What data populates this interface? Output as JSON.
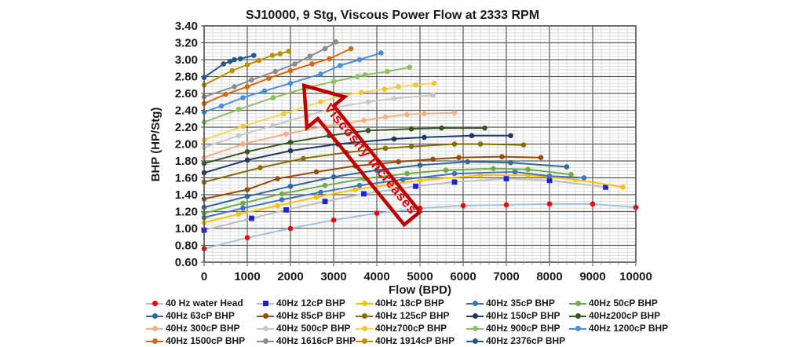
{
  "chart_data": {
    "type": "line",
    "title": "SJ10000, 9 Stg, Viscous Power Flow at 2333 RPM",
    "xlabel": "Flow (BPD)",
    "ylabel": "BHP (HP/Stg)",
    "xlim": [
      0,
      10000
    ],
    "ylim": [
      0.6,
      3.4
    ],
    "x_ticks": [
      0,
      1000,
      2000,
      3000,
      4000,
      5000,
      6000,
      7000,
      8000,
      9000,
      10000
    ],
    "y_ticks": [
      "3.40",
      "3.20",
      "3.00",
      "2.80",
      "2.60",
      "2.40",
      "2.20",
      "2.00",
      "1.80",
      "1.60",
      "1.40",
      "1.20",
      "1.00",
      "0.80",
      "0.60"
    ],
    "x_minor_step": 200,
    "y_minor_step": 0.04,
    "grid": true,
    "legend_position": "bottom",
    "annotation": {
      "text": "Viscosity Increases",
      "arrow_color": "#C00000",
      "text_color": "#E60000",
      "direction": "up-left"
    },
    "series": [
      {
        "name": "40 Hz water Head",
        "line_color": "#9DC3E6",
        "marker_color": "#FF0000",
        "marker": "circle",
        "points": [
          [
            0,
            0.76
          ],
          [
            1000,
            0.89
          ],
          [
            2000,
            1.0
          ],
          [
            3000,
            1.1
          ],
          [
            4000,
            1.18
          ],
          [
            5000,
            1.24
          ],
          [
            6000,
            1.27
          ],
          [
            7000,
            1.28
          ],
          [
            8000,
            1.29
          ],
          [
            9000,
            1.29
          ],
          [
            10000,
            1.25
          ]
        ]
      },
      {
        "name": "40Hz 12cP BHP",
        "line_color": "#BFBFBF",
        "marker_color": "#1F1FE0",
        "marker": "square",
        "points": [
          [
            0,
            0.98
          ],
          [
            1100,
            1.12
          ],
          [
            1900,
            1.22
          ],
          [
            2800,
            1.32
          ],
          [
            3700,
            1.41
          ],
          [
            4900,
            1.5
          ],
          [
            5800,
            1.55
          ],
          [
            7000,
            1.59
          ],
          [
            8000,
            1.57
          ],
          [
            9300,
            1.49
          ]
        ]
      },
      {
        "name": "40Hz 18cP BHP",
        "line_color": "#FFC000",
        "marker_color": "#FFC000",
        "marker": "circle",
        "points": [
          [
            0,
            1.07
          ],
          [
            800,
            1.17
          ],
          [
            1700,
            1.27
          ],
          [
            2600,
            1.37
          ],
          [
            3500,
            1.46
          ],
          [
            4300,
            1.52
          ],
          [
            5000,
            1.57
          ],
          [
            6400,
            1.63
          ],
          [
            7500,
            1.63
          ],
          [
            8600,
            1.58
          ],
          [
            9700,
            1.49
          ]
        ]
      },
      {
        "name": "40Hz 35cP BHP",
        "line_color": "#3C74BE",
        "marker_color": "#3C74BE",
        "marker": "circle",
        "points": [
          [
            0,
            1.13
          ],
          [
            900,
            1.24
          ],
          [
            1800,
            1.34
          ],
          [
            2700,
            1.43
          ],
          [
            3600,
            1.51
          ],
          [
            4600,
            1.58
          ],
          [
            5800,
            1.65
          ],
          [
            7200,
            1.67
          ],
          [
            8000,
            1.62
          ],
          [
            8800,
            1.6
          ]
        ]
      },
      {
        "name": "40Hz 50cP BHP",
        "line_color": "#70AD47",
        "marker_color": "#70AD47",
        "marker": "circle",
        "points": [
          [
            0,
            1.18
          ],
          [
            900,
            1.3
          ],
          [
            1800,
            1.41
          ],
          [
            2800,
            1.51
          ],
          [
            3700,
            1.59
          ],
          [
            4700,
            1.65
          ],
          [
            5600,
            1.69
          ],
          [
            6700,
            1.71
          ],
          [
            7500,
            1.7
          ],
          [
            8500,
            1.64
          ]
        ]
      },
      {
        "name": "40Hz 63cP BHP",
        "line_color": "#31689B",
        "marker_color": "#31689B",
        "marker": "circle",
        "points": [
          [
            0,
            1.25
          ],
          [
            1000,
            1.38
          ],
          [
            2000,
            1.5
          ],
          [
            3000,
            1.61
          ],
          [
            4000,
            1.69
          ],
          [
            5000,
            1.75
          ],
          [
            6100,
            1.79
          ],
          [
            7100,
            1.78
          ],
          [
            8400,
            1.73
          ]
        ]
      },
      {
        "name": "40Hz 85cP BHP",
        "line_color": "#9C4A08",
        "marker_color": "#9C4A08",
        "marker": "circle",
        "points": [
          [
            0,
            1.35
          ],
          [
            1000,
            1.46
          ],
          [
            1700,
            1.59
          ],
          [
            2600,
            1.67
          ],
          [
            3500,
            1.74
          ],
          [
            4500,
            1.79
          ],
          [
            5300,
            1.82
          ],
          [
            5900,
            1.84
          ],
          [
            6900,
            1.85
          ],
          [
            7800,
            1.84
          ]
        ]
      },
      {
        "name": "40Hz 125cP BHP",
        "line_color": "#8A6D00",
        "marker_color": "#8A6D00",
        "marker": "circle",
        "points": [
          [
            0,
            1.55
          ],
          [
            1300,
            1.72
          ],
          [
            2300,
            1.83
          ],
          [
            3300,
            1.9
          ],
          [
            4200,
            1.95
          ],
          [
            4800,
            1.97
          ],
          [
            5800,
            2.0
          ],
          [
            6400,
            2.0
          ],
          [
            7400,
            1.99
          ]
        ]
      },
      {
        "name": "40Hz 150cP BHP",
        "line_color": "#203864",
        "marker_color": "#203864",
        "marker": "circle",
        "points": [
          [
            0,
            1.66
          ],
          [
            1000,
            1.81
          ],
          [
            2000,
            1.92
          ],
          [
            3100,
            2.0
          ],
          [
            4400,
            2.06
          ],
          [
            5100,
            2.08
          ],
          [
            6200,
            2.1
          ],
          [
            7100,
            2.1
          ]
        ]
      },
      {
        "name": "40Hz200cP BHP",
        "line_color": "#375623",
        "marker_color": "#375623",
        "marker": "circle",
        "points": [
          [
            0,
            1.77
          ],
          [
            1000,
            1.91
          ],
          [
            2000,
            2.02
          ],
          [
            2900,
            2.1
          ],
          [
            3800,
            2.16
          ],
          [
            4800,
            2.18
          ],
          [
            5500,
            2.19
          ],
          [
            6500,
            2.19
          ]
        ]
      },
      {
        "name": "40Hz 300cP BHP",
        "line_color": "#F4B183",
        "marker_color": "#F4B183",
        "marker": "circle",
        "points": [
          [
            0,
            1.84
          ],
          [
            900,
            2.0
          ],
          [
            1900,
            2.12
          ],
          [
            2800,
            2.21
          ],
          [
            3700,
            2.28
          ],
          [
            4200,
            2.32
          ],
          [
            4700,
            2.35
          ],
          [
            5100,
            2.36
          ],
          [
            5800,
            2.37
          ]
        ]
      },
      {
        "name": "40Hz 500cP BHP",
        "line_color": "#C9C9C9",
        "marker_color": "#C9C9C9",
        "marker": "circle",
        "points": [
          [
            0,
            1.96
          ],
          [
            800,
            2.1
          ],
          [
            1600,
            2.22
          ],
          [
            2400,
            2.34
          ],
          [
            3100,
            2.44
          ],
          [
            3800,
            2.5
          ],
          [
            4400,
            2.54
          ],
          [
            5300,
            2.58
          ]
        ]
      },
      {
        "name": "40Hz700cP BHP",
        "line_color": "#FFD34D",
        "marker_color": "#F5C431",
        "marker": "circle",
        "points": [
          [
            0,
            2.05
          ],
          [
            900,
            2.21
          ],
          [
            1850,
            2.36
          ],
          [
            2700,
            2.5
          ],
          [
            3150,
            2.57
          ],
          [
            3640,
            2.61
          ],
          [
            4180,
            2.65
          ],
          [
            4500,
            2.68
          ],
          [
            4900,
            2.7
          ],
          [
            5330,
            2.72
          ]
        ]
      },
      {
        "name": "40Hz 900cP BHP",
        "line_color": "#8DC063",
        "marker_color": "#8DC063",
        "marker": "circle",
        "points": [
          [
            0,
            2.26
          ],
          [
            800,
            2.41
          ],
          [
            1600,
            2.55
          ],
          [
            2400,
            2.67
          ],
          [
            3000,
            2.74
          ],
          [
            3550,
            2.8
          ],
          [
            3730,
            2.82
          ],
          [
            4240,
            2.86
          ],
          [
            4760,
            2.91
          ]
        ]
      },
      {
        "name": "40Hz 1200cP BHP",
        "line_color": "#4A90D9",
        "marker_color": "#4A90D9",
        "marker": "circle",
        "points": [
          [
            0,
            2.38
          ],
          [
            400,
            2.45
          ],
          [
            900,
            2.55
          ],
          [
            1400,
            2.63
          ],
          [
            2000,
            2.72
          ],
          [
            2700,
            2.83
          ],
          [
            3150,
            2.93
          ],
          [
            3600,
            3.0
          ],
          [
            4100,
            3.08
          ]
        ]
      },
      {
        "name": "40Hz 1500cP BHP",
        "line_color": "#D6680F",
        "marker_color": "#D6680F",
        "marker": "circle",
        "points": [
          [
            0,
            2.48
          ],
          [
            500,
            2.59
          ],
          [
            1000,
            2.68
          ],
          [
            1500,
            2.78
          ],
          [
            2000,
            2.87
          ],
          [
            2500,
            2.95
          ],
          [
            2900,
            3.01
          ],
          [
            3400,
            3.13
          ]
        ]
      },
      {
        "name": "40Hz 1616cP BHP",
        "line_color": "#8C8C8C",
        "marker_color": "#8C8C8C",
        "marker": "circle",
        "points": [
          [
            0,
            2.56
          ],
          [
            700,
            2.68
          ],
          [
            1100,
            2.76
          ],
          [
            1650,
            2.86
          ],
          [
            2100,
            2.95
          ],
          [
            2450,
            3.04
          ],
          [
            2800,
            3.13
          ],
          [
            3050,
            3.21
          ]
        ]
      },
      {
        "name": "40Hz 1914cP BHP",
        "line_color": "#BF8F00",
        "marker_color": "#BF8F00",
        "marker": "circle",
        "points": [
          [
            0,
            2.7
          ],
          [
            650,
            2.87
          ],
          [
            1000,
            2.94
          ],
          [
            1270,
            2.99
          ],
          [
            1580,
            3.05
          ],
          [
            1760,
            3.07
          ],
          [
            1960,
            3.1
          ]
        ]
      },
      {
        "name": "40Hz 2376cP BHP",
        "line_color": "#26548C",
        "marker_color": "#26548C",
        "marker": "circle",
        "points": [
          [
            0,
            2.79
          ],
          [
            450,
            2.95
          ],
          [
            600,
            2.98
          ],
          [
            700,
            3.0
          ],
          [
            840,
            3.01
          ],
          [
            1150,
            3.05
          ]
        ]
      }
    ]
  }
}
